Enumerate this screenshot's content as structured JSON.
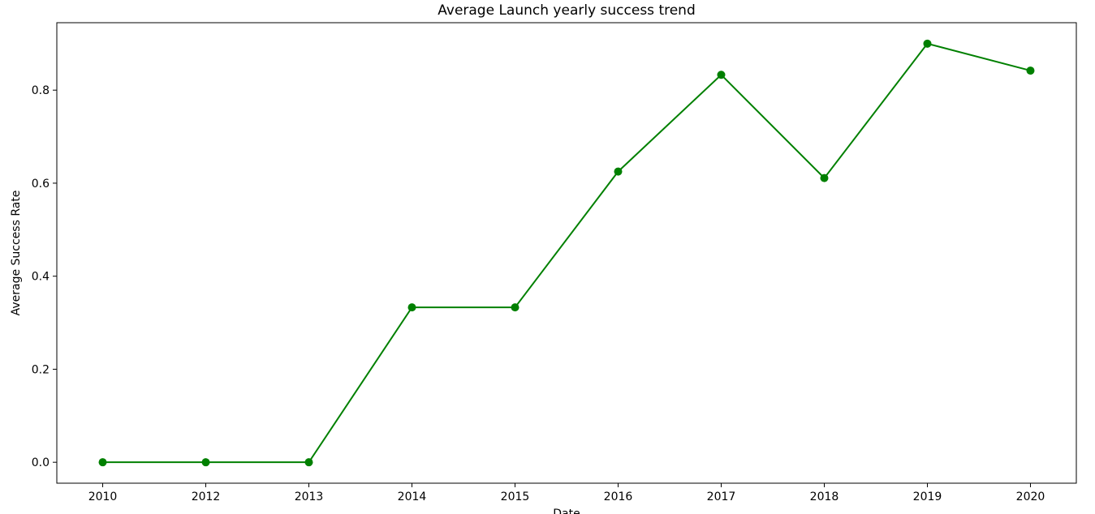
{
  "chart_data": {
    "type": "line",
    "title": "Average Launch yearly success trend",
    "xlabel": "Date",
    "ylabel": "Average Success Rate",
    "categories": [
      "2010",
      "2012",
      "2013",
      "2014",
      "2015",
      "2016",
      "2017",
      "2018",
      "2019",
      "2020"
    ],
    "values": [
      0.0,
      0.0,
      0.0,
      0.333,
      0.333,
      0.625,
      0.833,
      0.611,
      0.9,
      0.842
    ],
    "ylim": [
      -0.045,
      0.945
    ],
    "yticks": [
      0.0,
      0.2,
      0.4,
      0.6,
      0.8
    ],
    "ytick_labels": [
      "0.0",
      "0.2",
      "0.4",
      "0.6",
      "0.8"
    ],
    "grid": false,
    "marker": "circle",
    "color": "#008000"
  }
}
